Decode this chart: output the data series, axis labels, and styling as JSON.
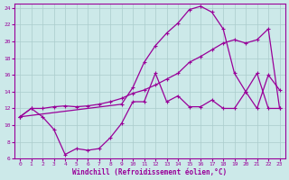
{
  "background_color": "#cce9e9",
  "grid_color": "#aacccc",
  "line_color": "#990099",
  "xlabel": "Windchill (Refroidissement éolien,°C)",
  "xlim": [
    -0.5,
    23.5
  ],
  "ylim": [
    6,
    24.5
  ],
  "yticks": [
    6,
    8,
    10,
    12,
    14,
    16,
    18,
    20,
    22,
    24
  ],
  "xticks": [
    0,
    1,
    2,
    3,
    4,
    5,
    6,
    7,
    8,
    9,
    10,
    11,
    12,
    13,
    14,
    15,
    16,
    17,
    18,
    19,
    20,
    21,
    22,
    23
  ],
  "series1_x": [
    0,
    1,
    2,
    3,
    4,
    5,
    6,
    7,
    8,
    9,
    10,
    11,
    12,
    13,
    14,
    15,
    16,
    17,
    18,
    19,
    20,
    21,
    22,
    23
  ],
  "series1_y": [
    11.0,
    12.0,
    11.0,
    9.5,
    6.5,
    7.2,
    7.0,
    7.2,
    8.5,
    10.2,
    12.8,
    12.8,
    16.2,
    12.8,
    13.5,
    12.2,
    12.2,
    13.0,
    12.0,
    12.0,
    14.0,
    16.2,
    12.0,
    12.0
  ],
  "series2_x": [
    0,
    1,
    2,
    3,
    4,
    5,
    6,
    7,
    8,
    9,
    10,
    11,
    12,
    13,
    14,
    15,
    16,
    17,
    18,
    19,
    20,
    21,
    22,
    23
  ],
  "series2_y": [
    11.0,
    12.0,
    12.0,
    12.2,
    12.3,
    12.2,
    12.3,
    12.5,
    12.8,
    13.2,
    13.8,
    14.2,
    14.8,
    15.5,
    16.2,
    17.5,
    18.2,
    19.0,
    19.8,
    20.2,
    19.8,
    20.2,
    21.5,
    12.0
  ],
  "series3_x": [
    0,
    9,
    10,
    11,
    12,
    13,
    14,
    15,
    16,
    17,
    18,
    19,
    20,
    21,
    22,
    23
  ],
  "series3_y": [
    11.0,
    12.5,
    14.5,
    17.5,
    19.5,
    21.0,
    22.2,
    23.8,
    24.2,
    23.5,
    21.5,
    16.2,
    14.0,
    12.0,
    16.0,
    14.2
  ]
}
